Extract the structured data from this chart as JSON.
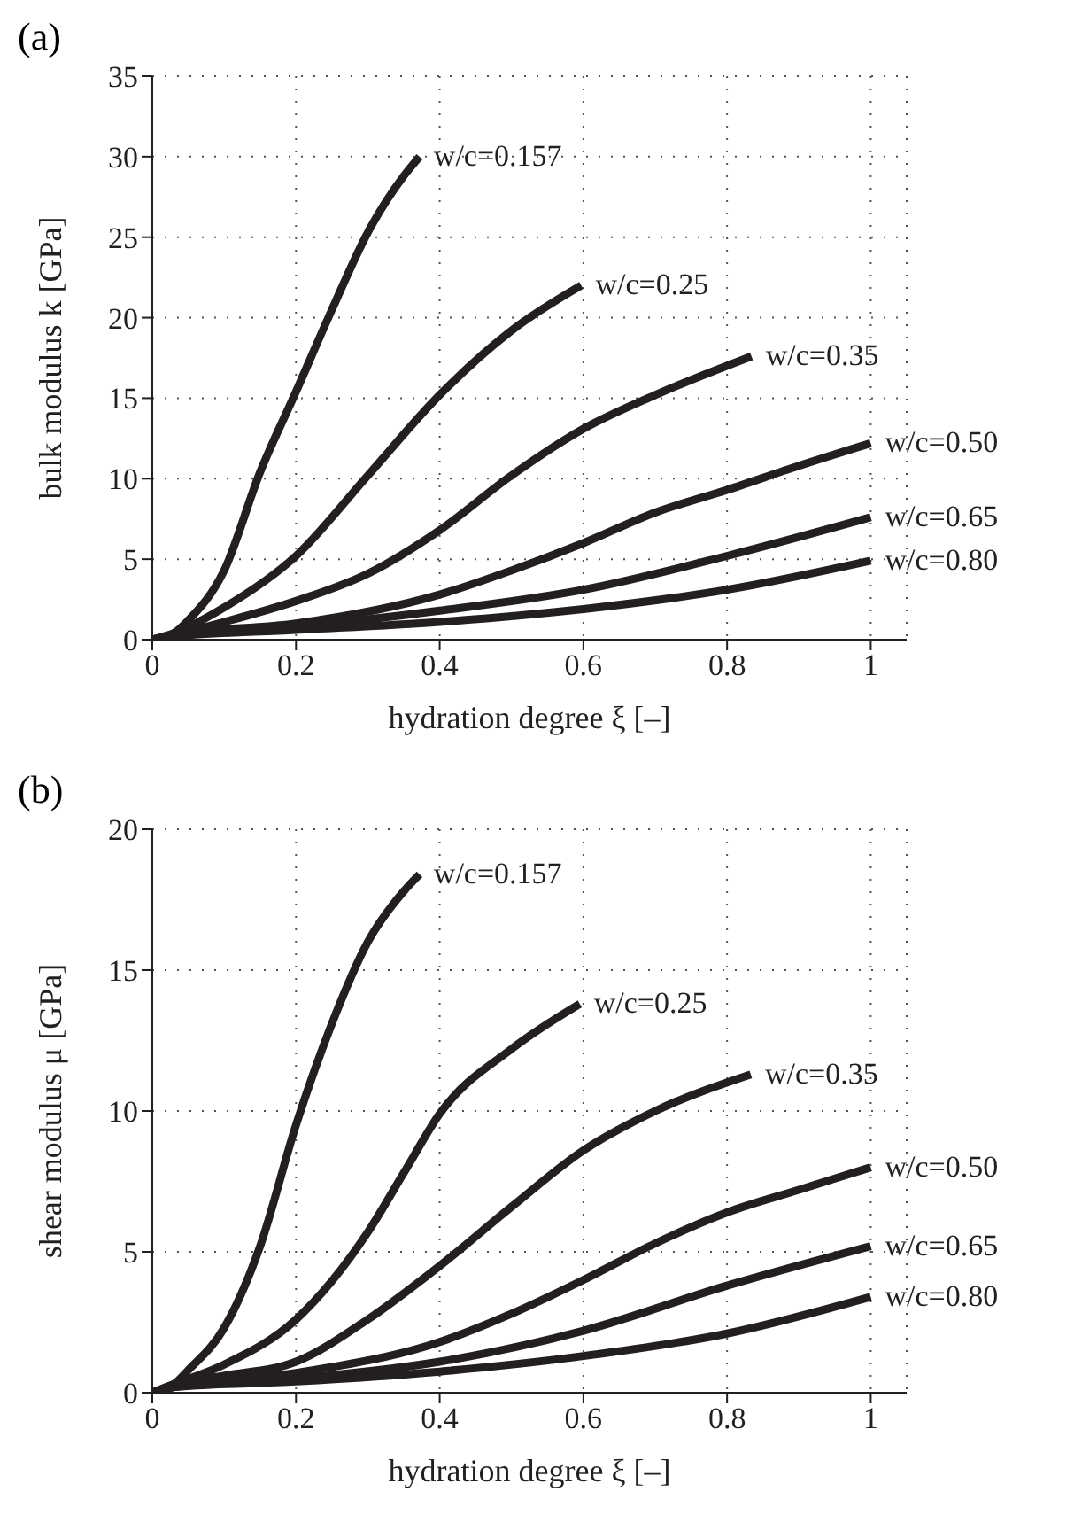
{
  "chart_data": [
    {
      "type": "line",
      "title": "(a)",
      "xlabel": "hydration degree ξ [–]",
      "ylabel": "bulk modulus k [GPa]",
      "xlim": [
        0,
        1.05
      ],
      "xticks": [
        0,
        0.2,
        0.4,
        0.6,
        0.8,
        1
      ],
      "ylim": [
        0,
        35
      ],
      "yticks": [
        0,
        5,
        10,
        15,
        20,
        25,
        30,
        35
      ],
      "grid": true,
      "series": [
        {
          "name": "w/c=0.157",
          "color": "#231f20",
          "x": [
            0,
            0.03,
            0.05,
            0.1,
            0.15,
            0.2,
            0.25,
            0.3,
            0.35,
            0.372
          ],
          "values": [
            0,
            0.4,
            1.2,
            4.3,
            10.4,
            15.4,
            20.5,
            25.3,
            28.8,
            30
          ]
        },
        {
          "name": "w/c=0.25",
          "color": "#231f20",
          "x": [
            0,
            0.03,
            0.1,
            0.2,
            0.3,
            0.4,
            0.5,
            0.597
          ],
          "values": [
            0,
            0.4,
            2.0,
            5.2,
            10.2,
            15.2,
            19.2,
            22
          ]
        },
        {
          "name": "w/c=0.35",
          "color": "#231f20",
          "x": [
            0,
            0.03,
            0.1,
            0.2,
            0.3,
            0.4,
            0.5,
            0.6,
            0.7,
            0.834
          ],
          "values": [
            0,
            0.3,
            1.1,
            2.4,
            4.1,
            6.8,
            10.2,
            13.1,
            15.2,
            17.6
          ]
        },
        {
          "name": "w/c=0.50",
          "color": "#231f20",
          "x": [
            0,
            0.03,
            0.2,
            0.4,
            0.5,
            0.6,
            0.7,
            0.8,
            0.9,
            1
          ],
          "values": [
            0,
            0.3,
            1.0,
            2.8,
            4.3,
            6.0,
            7.9,
            9.3,
            10.8,
            12.2
          ]
        },
        {
          "name": "w/c=0.65",
          "color": "#231f20",
          "x": [
            0,
            0.03,
            0.2,
            0.4,
            0.6,
            0.8,
            1
          ],
          "values": [
            0,
            0.2,
            0.8,
            1.8,
            3.1,
            5.2,
            7.6
          ]
        },
        {
          "name": "w/c=0.80",
          "color": "#231f20",
          "x": [
            0,
            0.03,
            0.2,
            0.4,
            0.6,
            0.8,
            1
          ],
          "values": [
            0,
            0.2,
            0.6,
            1.1,
            1.9,
            3.1,
            4.9
          ]
        }
      ]
    },
    {
      "type": "line",
      "title": "(b)",
      "xlabel": "hydration degree ξ [–]",
      "ylabel": "shear modulus μ [GPa]",
      "xlim": [
        0,
        1.05
      ],
      "xticks": [
        0,
        0.2,
        0.4,
        0.6,
        0.8,
        1
      ],
      "ylim": [
        0,
        20
      ],
      "yticks": [
        0,
        5,
        10,
        15,
        20
      ],
      "grid": true,
      "series": [
        {
          "name": "w/c=0.157",
          "color": "#231f20",
          "x": [
            0,
            0.03,
            0.05,
            0.1,
            0.15,
            0.2,
            0.25,
            0.3,
            0.35,
            0.372
          ],
          "values": [
            0,
            0.3,
            0.8,
            2.3,
            5.2,
            9.5,
            13.1,
            16.0,
            17.8,
            18.4
          ]
        },
        {
          "name": "w/c=0.25",
          "color": "#231f20",
          "x": [
            0,
            0.03,
            0.1,
            0.2,
            0.3,
            0.35,
            0.4,
            0.5,
            0.595
          ],
          "values": [
            0,
            0.3,
            1.0,
            2.6,
            5.7,
            7.8,
            9.9,
            12.2,
            13.8
          ]
        },
        {
          "name": "w/c=0.35",
          "color": "#231f20",
          "x": [
            0,
            0.03,
            0.1,
            0.2,
            0.3,
            0.4,
            0.5,
            0.6,
            0.7,
            0.833
          ],
          "values": [
            0,
            0.3,
            0.6,
            1.1,
            2.6,
            4.5,
            6.6,
            8.6,
            10.0,
            11.3
          ]
        },
        {
          "name": "w/c=0.50",
          "color": "#231f20",
          "x": [
            0,
            0.03,
            0.2,
            0.4,
            0.5,
            0.6,
            0.7,
            0.8,
            0.9,
            1
          ],
          "values": [
            0,
            0.2,
            0.7,
            1.8,
            2.8,
            4.0,
            5.3,
            6.4,
            7.2,
            8.0
          ]
        },
        {
          "name": "w/c=0.65",
          "color": "#231f20",
          "x": [
            0,
            0.03,
            0.2,
            0.4,
            0.6,
            0.8,
            1
          ],
          "values": [
            0,
            0.2,
            0.5,
            1.1,
            2.2,
            3.8,
            5.2
          ]
        },
        {
          "name": "w/c=0.80",
          "color": "#231f20",
          "x": [
            0,
            0.03,
            0.2,
            0.4,
            0.6,
            0.8,
            1
          ],
          "values": [
            0,
            0.2,
            0.4,
            0.75,
            1.3,
            2.1,
            3.4
          ]
        }
      ]
    }
  ]
}
